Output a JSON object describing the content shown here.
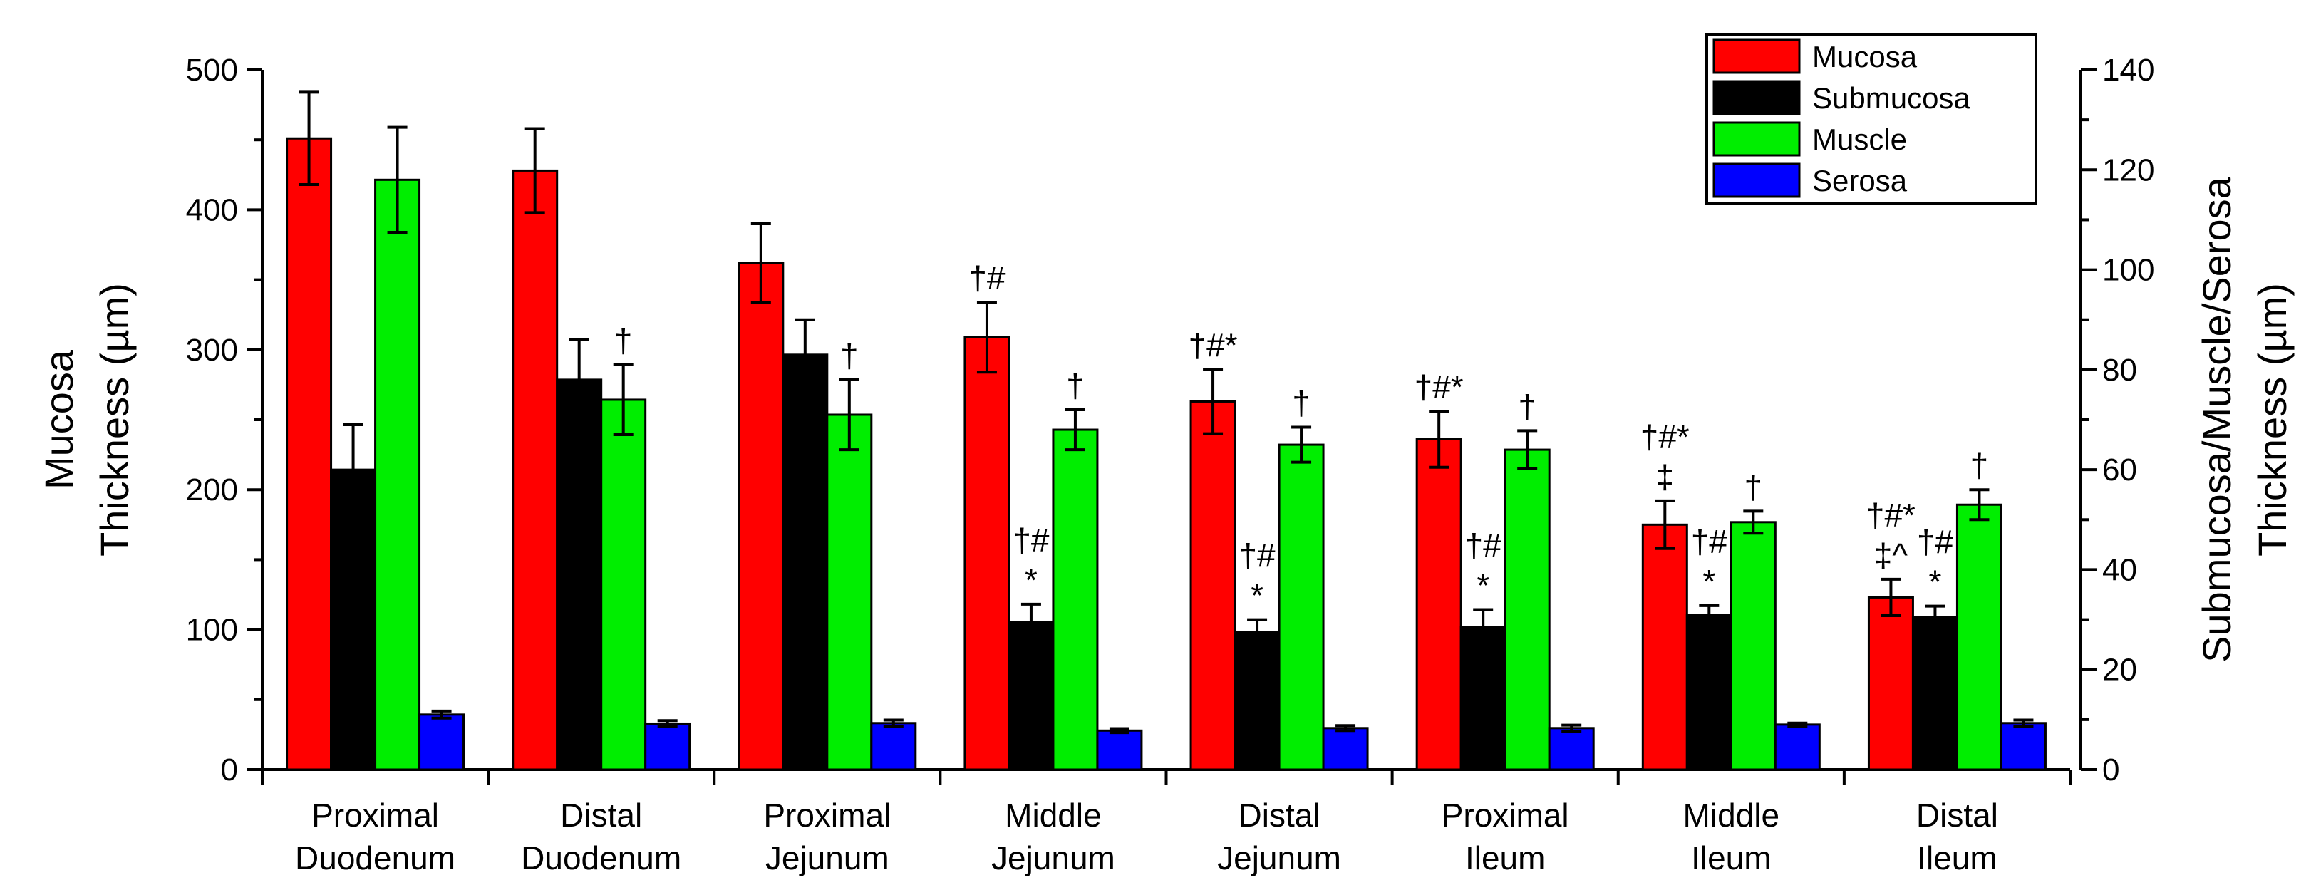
{
  "chart_data": {
    "type": "bar",
    "categories": [
      [
        "Proximal",
        "Duodenum"
      ],
      [
        "Distal",
        "Duodenum"
      ],
      [
        "Proximal",
        "Jejunum"
      ],
      [
        "Middle",
        "Jejunum"
      ],
      [
        "Distal",
        "Jejunum"
      ],
      [
        "Proximal",
        "Ileum"
      ],
      [
        "Middle",
        "Ileum"
      ],
      [
        "Distal",
        "Ileum"
      ]
    ],
    "ylabel_left": [
      "Mucosa",
      "Thickness (µm)"
    ],
    "ylabel_right": [
      "Submucosa/Muscle/Serosa",
      "Thickness (µm)"
    ],
    "ylim_left": [
      0,
      500
    ],
    "ylim_right": [
      0,
      140
    ],
    "yticks_left": [
      "0",
      "100",
      "200",
      "300",
      "400",
      "500"
    ],
    "yticks_right": [
      "0",
      "20",
      "40",
      "60",
      "80",
      "100",
      "120",
      "140"
    ],
    "legend_position": "top-right",
    "series": [
      {
        "name": "Mucosa",
        "axis": "left",
        "color": "#ff0000",
        "values": [
          451,
          428,
          362,
          309,
          263,
          236,
          175,
          123
        ],
        "errors": [
          33,
          30,
          28,
          25,
          23,
          20,
          17,
          13
        ]
      },
      {
        "name": "Submucosa",
        "axis": "right",
        "color": "#000000",
        "values": [
          60,
          78,
          83,
          29.5,
          27.5,
          28.5,
          31,
          30.5
        ],
        "errors": [
          9,
          8,
          7,
          3.6,
          2.5,
          3.5,
          1.8,
          2.2
        ]
      },
      {
        "name": "Muscle",
        "axis": "right",
        "color": "#00ee00",
        "values": [
          118,
          74,
          71,
          68,
          65,
          64,
          49.5,
          53
        ],
        "errors": [
          10.5,
          7,
          7,
          4,
          3.5,
          3.8,
          2.2,
          3
        ]
      },
      {
        "name": "Serosa",
        "axis": "right",
        "color": "#0000ff",
        "values": [
          11,
          9.2,
          9.3,
          7.8,
          8.3,
          8.3,
          9,
          9.3
        ],
        "errors": [
          0.7,
          0.6,
          0.6,
          0.4,
          0.5,
          0.6,
          0.3,
          0.6
        ]
      }
    ],
    "annotations": [
      {
        "category": 1,
        "series": 2,
        "lines": [
          "†"
        ]
      },
      {
        "category": 2,
        "series": 2,
        "lines": [
          "†"
        ]
      },
      {
        "category": 3,
        "series": 0,
        "lines": [
          "†#"
        ]
      },
      {
        "category": 3,
        "series": 1,
        "lines": [
          "†#",
          "*"
        ]
      },
      {
        "category": 3,
        "series": 2,
        "lines": [
          "†"
        ]
      },
      {
        "category": 4,
        "series": 0,
        "lines": [
          "†#*"
        ]
      },
      {
        "category": 4,
        "series": 1,
        "lines": [
          "†#",
          "*"
        ]
      },
      {
        "category": 4,
        "series": 2,
        "lines": [
          "†"
        ]
      },
      {
        "category": 5,
        "series": 0,
        "lines": [
          "†#*"
        ]
      },
      {
        "category": 5,
        "series": 1,
        "lines": [
          "†#",
          "*"
        ]
      },
      {
        "category": 5,
        "series": 2,
        "lines": [
          "†"
        ]
      },
      {
        "category": 6,
        "series": 0,
        "lines": [
          "†#*",
          "‡"
        ]
      },
      {
        "category": 6,
        "series": 1,
        "lines": [
          "†#",
          "*"
        ]
      },
      {
        "category": 6,
        "series": 2,
        "lines": [
          "†"
        ]
      },
      {
        "category": 7,
        "series": 0,
        "lines": [
          "†#*",
          "‡^"
        ]
      },
      {
        "category": 7,
        "series": 1,
        "lines": [
          "†#",
          "*"
        ]
      },
      {
        "category": 7,
        "series": 2,
        "lines": [
          "†"
        ]
      }
    ]
  }
}
